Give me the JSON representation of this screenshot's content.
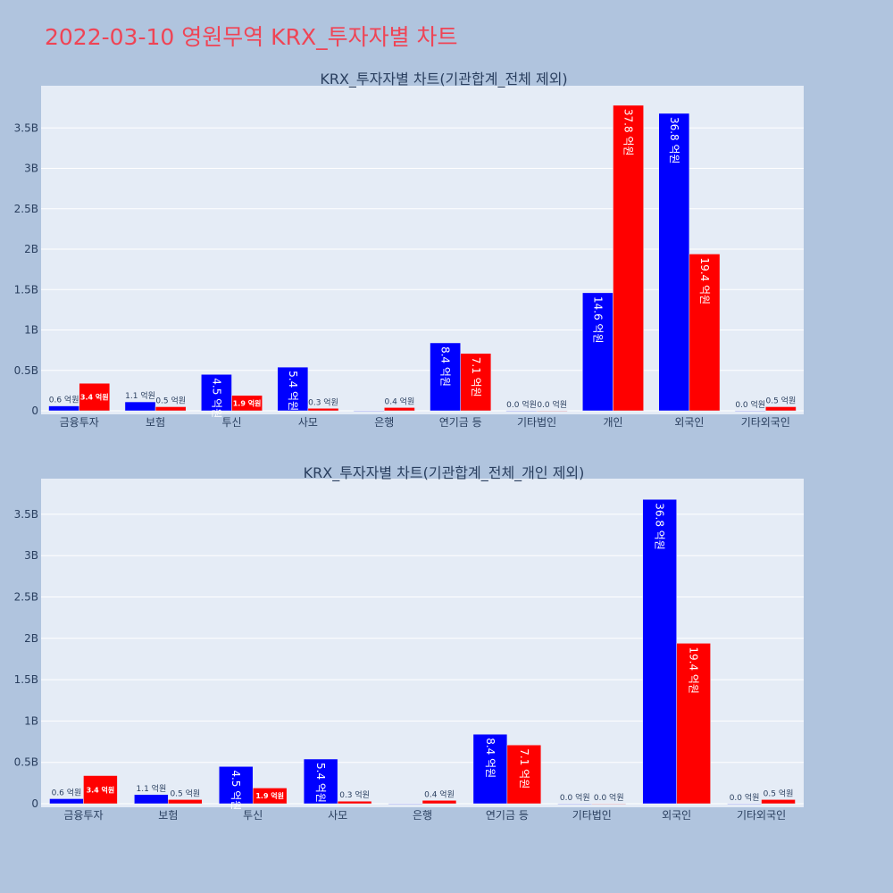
{
  "page_title": "2022-03-10 영원무역 KRX_투자자별 차트",
  "colors": {
    "background": "#b0c4de",
    "plot_bg": "#e5ecf6",
    "sell": "#0000ff",
    "buy": "#ff0000",
    "title": "#ef4455"
  },
  "chart_data": [
    {
      "type": "bar",
      "title": "KRX_투자자별 차트(기관합계_전체 제외)",
      "categories": [
        "금융투자",
        "보험",
        "투신",
        "사모",
        "은행",
        "연기금 등",
        "기타법인",
        "개인",
        "외국인",
        "기타외국인"
      ],
      "series": [
        {
          "color": "#0000ff",
          "values": [
            0.06,
            0.11,
            0.45,
            0.54,
            0.0,
            0.84,
            0.0,
            1.46,
            3.68,
            0.0
          ],
          "labels": [
            "0.6 억원",
            "1.1 억원",
            "4.5 억원",
            "5.4 억원",
            "",
            "8.4 억원",
            "0.0 억원",
            "14.6 억원",
            "36.8 억원",
            "0.0 억원"
          ]
        },
        {
          "color": "#ff0000",
          "values": [
            0.34,
            0.05,
            0.19,
            0.03,
            0.04,
            0.71,
            0.0,
            3.78,
            1.94,
            0.05
          ],
          "labels": [
            "3.4 억원",
            "0.5 억원",
            "1.9 억원",
            "0.3 억원",
            "0.4 억원",
            "7.1 억원",
            "0.0 억원",
            "37.8 억원",
            "19.4 억원",
            "0.5 억원"
          ]
        }
      ],
      "yticks": [
        0,
        0.5,
        1,
        1.5,
        2,
        2.5,
        3,
        3.5
      ],
      "ytick_labels": [
        "0",
        "0.5B",
        "1B",
        "1.5B",
        "2B",
        "2.5B",
        "3B",
        "3.5B"
      ],
      "ylim": [
        0,
        4.03
      ]
    },
    {
      "type": "bar",
      "title": "KRX_투자자별 차트(기관합계_전체_개인 제외)",
      "categories": [
        "금융투자",
        "보험",
        "투신",
        "사모",
        "은행",
        "연기금 등",
        "기타법인",
        "외국인",
        "기타외국인"
      ],
      "series": [
        {
          "color": "#0000ff",
          "values": [
            0.06,
            0.11,
            0.45,
            0.54,
            0.0,
            0.84,
            0.0,
            3.68,
            0.0
          ],
          "labels": [
            "0.6 억원",
            "1.1 억원",
            "4.5 억원",
            "5.4 억원",
            "",
            "8.4 억원",
            "0.0 억원",
            "36.8 억원",
            "0.0 억원"
          ]
        },
        {
          "color": "#ff0000",
          "values": [
            0.34,
            0.05,
            0.19,
            0.03,
            0.04,
            0.71,
            0.0,
            1.94,
            0.05
          ],
          "labels": [
            "3.4 억원",
            "0.5 억원",
            "1.9 억원",
            "0.3 억원",
            "0.4 억원",
            "7.1 억원",
            "0.0 억원",
            "19.4 억원",
            "0.5 억원"
          ]
        }
      ],
      "yticks": [
        0,
        0.5,
        1,
        1.5,
        2,
        2.5,
        3,
        3.5
      ],
      "ytick_labels": [
        "0",
        "0.5B",
        "1B",
        "1.5B",
        "2B",
        "2.5B",
        "3B",
        "3.5B"
      ],
      "ylim": [
        0,
        4.03
      ]
    }
  ]
}
